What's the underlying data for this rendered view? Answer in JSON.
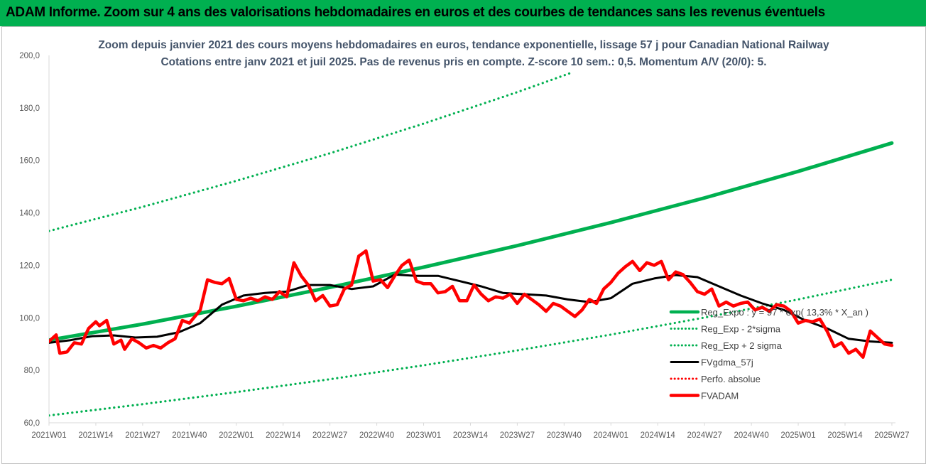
{
  "header": {
    "title": "ADAM Informe. Zoom sur 4 ans des valorisations hebdomadaires en euros et des courbes de tendances sans les revenus éventuels"
  },
  "chart_data": {
    "type": "line",
    "title": [
      "Zoom depuis janvier 2021 des cours moyens hebdomadaires en euros, tendance exponentielle, lissage 57 j pour Canadian National Railway",
      "Cotations entre janv 2021 et juil 2025. Pas de revenus pris en compte. Z-score 10 sem.: 0,5. Momentum A/V (20/0): 5."
    ],
    "ylim": [
      60,
      200
    ],
    "yticks": [
      "60,0",
      "80,0",
      "100,0",
      "120,0",
      "140,0",
      "160,0",
      "180,0",
      "200,0"
    ],
    "xlim": [
      0,
      235
    ],
    "xtick_positions": [
      0,
      13,
      26,
      39,
      52,
      65,
      78,
      91,
      104,
      117,
      130,
      143,
      156,
      169,
      182,
      195,
      208,
      221,
      234
    ],
    "xticks": [
      "2021W01",
      "2021W14",
      "2021W27",
      "2021W40",
      "2022W01",
      "2022W14",
      "2022W27",
      "2022W40",
      "2023W01",
      "2023W14",
      "2023W27",
      "2023W40",
      "2024W01",
      "2024W14",
      "2024W27",
      "2024W40",
      "2025W01",
      "2025W14",
      "2025W27"
    ],
    "grid": false,
    "legend_position": "right",
    "series": [
      {
        "name": "Reg_Expo : y = 97 * exp( 13,3% * X_an )",
        "color": "#00b050",
        "style": "solid",
        "x": [
          0,
          26,
          52,
          78,
          104,
          130,
          156,
          182,
          208,
          234
        ],
        "values": [
          91.5,
          97.6,
          104.4,
          111.6,
          119.3,
          127.5,
          136.3,
          145.7,
          155.8,
          166.6
        ]
      },
      {
        "name": "Reg_Exp - 2*sigma",
        "color": "#00b050",
        "style": "dotted",
        "x": [
          0,
          26,
          52,
          78,
          104,
          130,
          156,
          182,
          208,
          234
        ],
        "values": [
          62.8,
          67.1,
          71.7,
          76.6,
          81.9,
          87.6,
          93.6,
          100.1,
          107.0,
          114.5
        ]
      },
      {
        "name": "Reg_Exp + 2 sigma",
        "color": "#00b050",
        "style": "dotted",
        "x": [
          0,
          26,
          52,
          78,
          104,
          130,
          145
        ],
        "values": [
          133.1,
          142.3,
          152.2,
          162.7,
          174.0,
          186.0,
          193.4
        ]
      },
      {
        "name": "FVgdma_57j",
        "color": "#000000",
        "style": "solid",
        "x": [
          0,
          6,
          12,
          18,
          24,
          30,
          36,
          42,
          48,
          54,
          60,
          66,
          72,
          78,
          84,
          90,
          96,
          102,
          108,
          114,
          120,
          126,
          132,
          138,
          144,
          150,
          156,
          162,
          168,
          174,
          180,
          186,
          192,
          198,
          204,
          210,
          216,
          222,
          228,
          234
        ],
        "values": [
          90.5,
          91.5,
          93.0,
          93.3,
          92.5,
          92.8,
          94.5,
          98.0,
          105.0,
          108.5,
          109.5,
          110.0,
          112.5,
          112.5,
          111.0,
          112.0,
          116.5,
          116.0,
          116.0,
          114.0,
          112.0,
          109.5,
          109.0,
          108.5,
          107.0,
          106.0,
          107.5,
          113.0,
          115.0,
          116.3,
          115.5,
          112.0,
          108.5,
          105.5,
          103.0,
          99.0,
          96.0,
          92.0,
          91.0,
          90.5
        ]
      },
      {
        "name": "Perfo. absolue",
        "color": "#ff0000",
        "style": "dotted",
        "x": [],
        "values": []
      },
      {
        "name": "FVADAM",
        "color": "#ff0000",
        "style": "solid",
        "x": [
          0,
          2,
          3,
          5,
          7,
          9,
          11,
          13,
          14,
          16,
          18,
          20,
          21,
          23,
          25,
          27,
          29,
          31,
          33,
          35,
          37,
          39,
          42,
          44,
          46,
          48,
          50,
          52,
          54,
          56,
          58,
          60,
          62,
          64,
          66,
          68,
          70,
          72,
          74,
          76,
          78,
          80,
          82,
          84,
          86,
          88,
          90,
          92,
          94,
          96,
          98,
          100,
          102,
          104,
          106,
          108,
          110,
          112,
          114,
          116,
          118,
          120,
          122,
          124,
          126,
          128,
          130,
          132,
          134,
          136,
          138,
          140,
          142,
          144,
          146,
          148,
          150,
          152,
          154,
          156,
          158,
          160,
          162,
          164,
          166,
          168,
          170,
          172,
          174,
          176,
          178,
          180,
          182,
          184,
          186,
          188,
          190,
          192,
          194,
          196,
          198,
          200,
          202,
          204,
          206,
          208,
          210,
          212,
          214,
          216,
          218,
          220,
          222,
          224,
          226,
          228,
          230,
          232,
          234
        ],
        "values": [
          91.0,
          93.5,
          86.5,
          87.0,
          90.5,
          90.0,
          96.0,
          98.5,
          97.0,
          99.0,
          90.0,
          91.5,
          88.0,
          92.0,
          90.5,
          88.5,
          89.5,
          88.5,
          90.5,
          92.0,
          99.0,
          98.0,
          103.0,
          114.5,
          113.5,
          113.0,
          115.0,
          107.0,
          106.5,
          107.5,
          106.5,
          108.0,
          107.0,
          110.0,
          108.0,
          121.0,
          116.0,
          112.5,
          106.5,
          108.5,
          104.5,
          105.0,
          111.0,
          112.5,
          123.5,
          125.5,
          114.0,
          114.5,
          111.5,
          116.0,
          120.0,
          122.0,
          114.0,
          113.0,
          113.0,
          109.5,
          110.0,
          112.0,
          106.5,
          106.5,
          112.5,
          109.0,
          106.5,
          108.0,
          107.5,
          109.0,
          105.5,
          109.0,
          107.0,
          105.0,
          102.5,
          105.5,
          104.5,
          102.5,
          100.5,
          103.0,
          107.0,
          105.5,
          111.0,
          113.5,
          117.0,
          119.5,
          121.5,
          118.0,
          121.0,
          120.0,
          121.5,
          114.5,
          117.5,
          116.5,
          113.5,
          110.0,
          109.0,
          111.0,
          104.5,
          106.0,
          104.5,
          105.5,
          106.0,
          103.0,
          104.0,
          102.5,
          105.0,
          104.5,
          102.5,
          98.0,
          99.0,
          98.5,
          99.5,
          95.0,
          89.0,
          90.5,
          86.5,
          88.0,
          85.0,
          95.0,
          92.5,
          90.0,
          89.5
        ]
      }
    ]
  }
}
